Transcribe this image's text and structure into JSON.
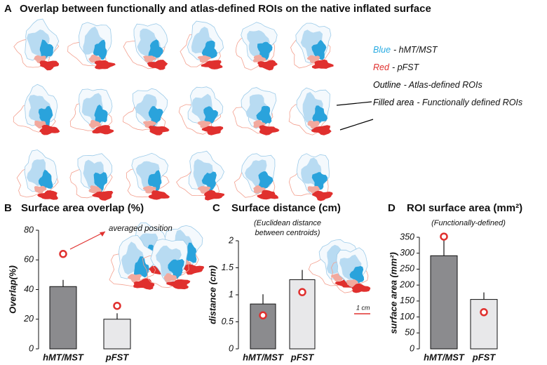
{
  "panel_a": {
    "panel": "A",
    "title": "Overlap between functionally and atlas-defined ROIs on the native inflated surface",
    "legend": [
      {
        "word": "Blue",
        "label": "- hMT/MST",
        "color": "#29abe2"
      },
      {
        "word": "Red",
        "label": "- pFST",
        "color": "#e0302e"
      },
      {
        "word": "Outline",
        "label": "- Atlas-defined ROIs",
        "color": "#000000"
      },
      {
        "word": "Filled area",
        "label": "- Functionally defined ROIs",
        "color": "#000000"
      }
    ]
  },
  "chart_data": [
    {
      "type": "bar",
      "panel": "B",
      "title": "Surface area overlap (%)",
      "y_label": "Overlap(%)",
      "annotation": "averaged position",
      "categories": [
        "hMT/MST",
        "pFST"
      ],
      "series": [
        {
          "values": [
            42,
            20
          ],
          "errors": [
            4.5,
            4
          ],
          "colors": [
            "#8b8b8e",
            "#e8e8ea"
          ]
        },
        {
          "values": [
            64,
            29
          ],
          "color": "#e0302e",
          "marker": "circle"
        }
      ],
      "ylim": [
        0,
        80
      ],
      "yticks": [
        0,
        20,
        40,
        60,
        80
      ]
    },
    {
      "type": "bar",
      "panel": "C",
      "title": "Surface distance (cm)",
      "subtitle": [
        "(Euclidean distance",
        "between centroids)"
      ],
      "y_label": "distance (cm)",
      "annotation": "1 cm",
      "categories": [
        "hMT/MST",
        "pFST"
      ],
      "series": [
        {
          "values": [
            0.83,
            1.28
          ],
          "errors": [
            0.18,
            0.18
          ],
          "colors": [
            "#8b8b8e",
            "#e8e8ea"
          ]
        },
        {
          "values": [
            0.62,
            1.05
          ],
          "color": "#e0302e",
          "marker": "circle"
        }
      ],
      "ylim": [
        0,
        2
      ],
      "yticks": [
        0,
        0.5,
        1,
        1.5,
        2
      ]
    },
    {
      "type": "bar",
      "panel": "D",
      "title": "ROI surface area (mm²)",
      "subtitle": [
        "(Functionally-defined)"
      ],
      "y_label": "surface area (mm²)",
      "categories": [
        "hMT/MST",
        "pFST"
      ],
      "series": [
        {
          "values": [
            292,
            155
          ],
          "errors": [
            50,
            22
          ],
          "colors": [
            "#8b8b8e",
            "#e8e8ea"
          ]
        },
        {
          "values": [
            352,
            115
          ],
          "color": "#e0302e",
          "marker": "circle"
        }
      ],
      "ylim": [
        0,
        350
      ],
      "yticks": [
        0,
        50,
        100,
        150,
        200,
        250,
        300,
        350
      ]
    }
  ]
}
